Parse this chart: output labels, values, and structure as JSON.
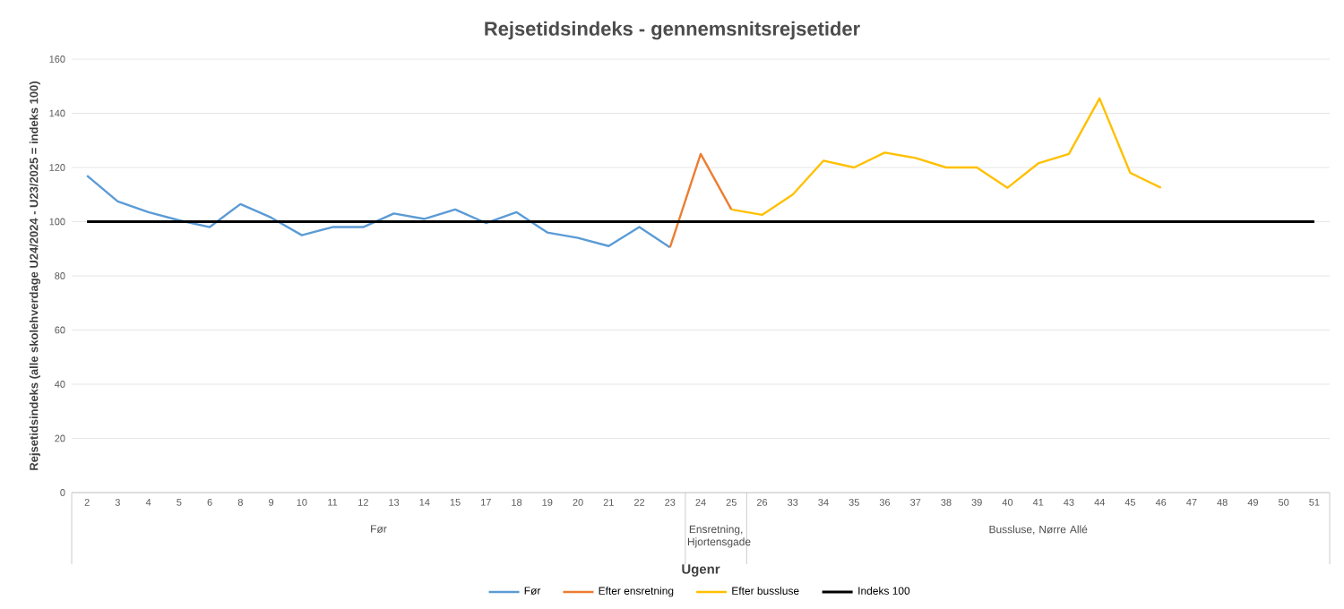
{
  "chart_data": {
    "type": "line",
    "title": "Rejsetidsindeks - gennemsnitsrejsetider",
    "xlabel": "Ugenr",
    "ylabel": "Rejsetidsindeks (alle skolehverdage U24/2024 - U23/2025 = indeks 100)",
    "categories": [
      "2",
      "3",
      "4",
      "5",
      "6",
      "8",
      "9",
      "10",
      "11",
      "12",
      "13",
      "14",
      "15",
      "17",
      "18",
      "19",
      "20",
      "21",
      "22",
      "23",
      "24",
      "25",
      "26",
      "33",
      "34",
      "35",
      "36",
      "37",
      "38",
      "39",
      "40",
      "41",
      "43",
      "44",
      "45",
      "46",
      "47",
      "48",
      "49",
      "50",
      "51"
    ],
    "series": [
      {
        "name": "Før",
        "color": "#5b9bd5",
        "values": [
          117,
          107.5,
          103.5,
          100.5,
          98,
          106.5,
          101.5,
          95,
          98,
          98,
          103,
          101,
          104.5,
          99.5,
          103.5,
          96,
          94,
          91,
          98,
          90.5,
          null,
          null,
          null,
          null,
          null,
          null,
          null,
          null,
          null,
          null,
          null,
          null,
          null,
          null,
          null,
          null,
          null,
          null,
          null,
          null,
          null
        ]
      },
      {
        "name": "Efter ensretning",
        "color": "#ed7d31",
        "values": [
          null,
          null,
          null,
          null,
          null,
          null,
          null,
          null,
          null,
          null,
          null,
          null,
          null,
          null,
          null,
          null,
          null,
          null,
          null,
          90.5,
          125,
          104.5,
          null,
          null,
          null,
          null,
          null,
          null,
          null,
          null,
          null,
          null,
          null,
          null,
          null,
          null,
          null,
          null,
          null,
          null,
          null
        ]
      },
      {
        "name": "Efter bussluse",
        "color": "#ffc000",
        "values": [
          null,
          null,
          null,
          null,
          null,
          null,
          null,
          null,
          null,
          null,
          null,
          null,
          null,
          null,
          null,
          null,
          null,
          null,
          null,
          null,
          null,
          104.5,
          102.5,
          110,
          122.5,
          120,
          125.5,
          123.5,
          120,
          120,
          112.5,
          121.5,
          125,
          145.5,
          118,
          112.5,
          null,
          null,
          null,
          null,
          null
        ]
      },
      {
        "name": "Indeks 100",
        "color": "#000000",
        "values": [
          100,
          100,
          100,
          100,
          100,
          100,
          100,
          100,
          100,
          100,
          100,
          100,
          100,
          100,
          100,
          100,
          100,
          100,
          100,
          100,
          100,
          100,
          100,
          100,
          100,
          100,
          100,
          100,
          100,
          100,
          100,
          100,
          100,
          100,
          100,
          100,
          100,
          100,
          100,
          100,
          100
        ]
      }
    ],
    "annotations": [
      "Før",
      "Ensretning, Hjortensgade",
      "Bussluse, Nørre Allé"
    ],
    "ylim": [
      0,
      160
    ],
    "yticks": [
      0,
      20,
      40,
      60,
      80,
      100,
      120,
      140,
      160
    ],
    "grid": "y",
    "legend": "bottom",
    "marker": "none",
    "line_style": "solid"
  }
}
